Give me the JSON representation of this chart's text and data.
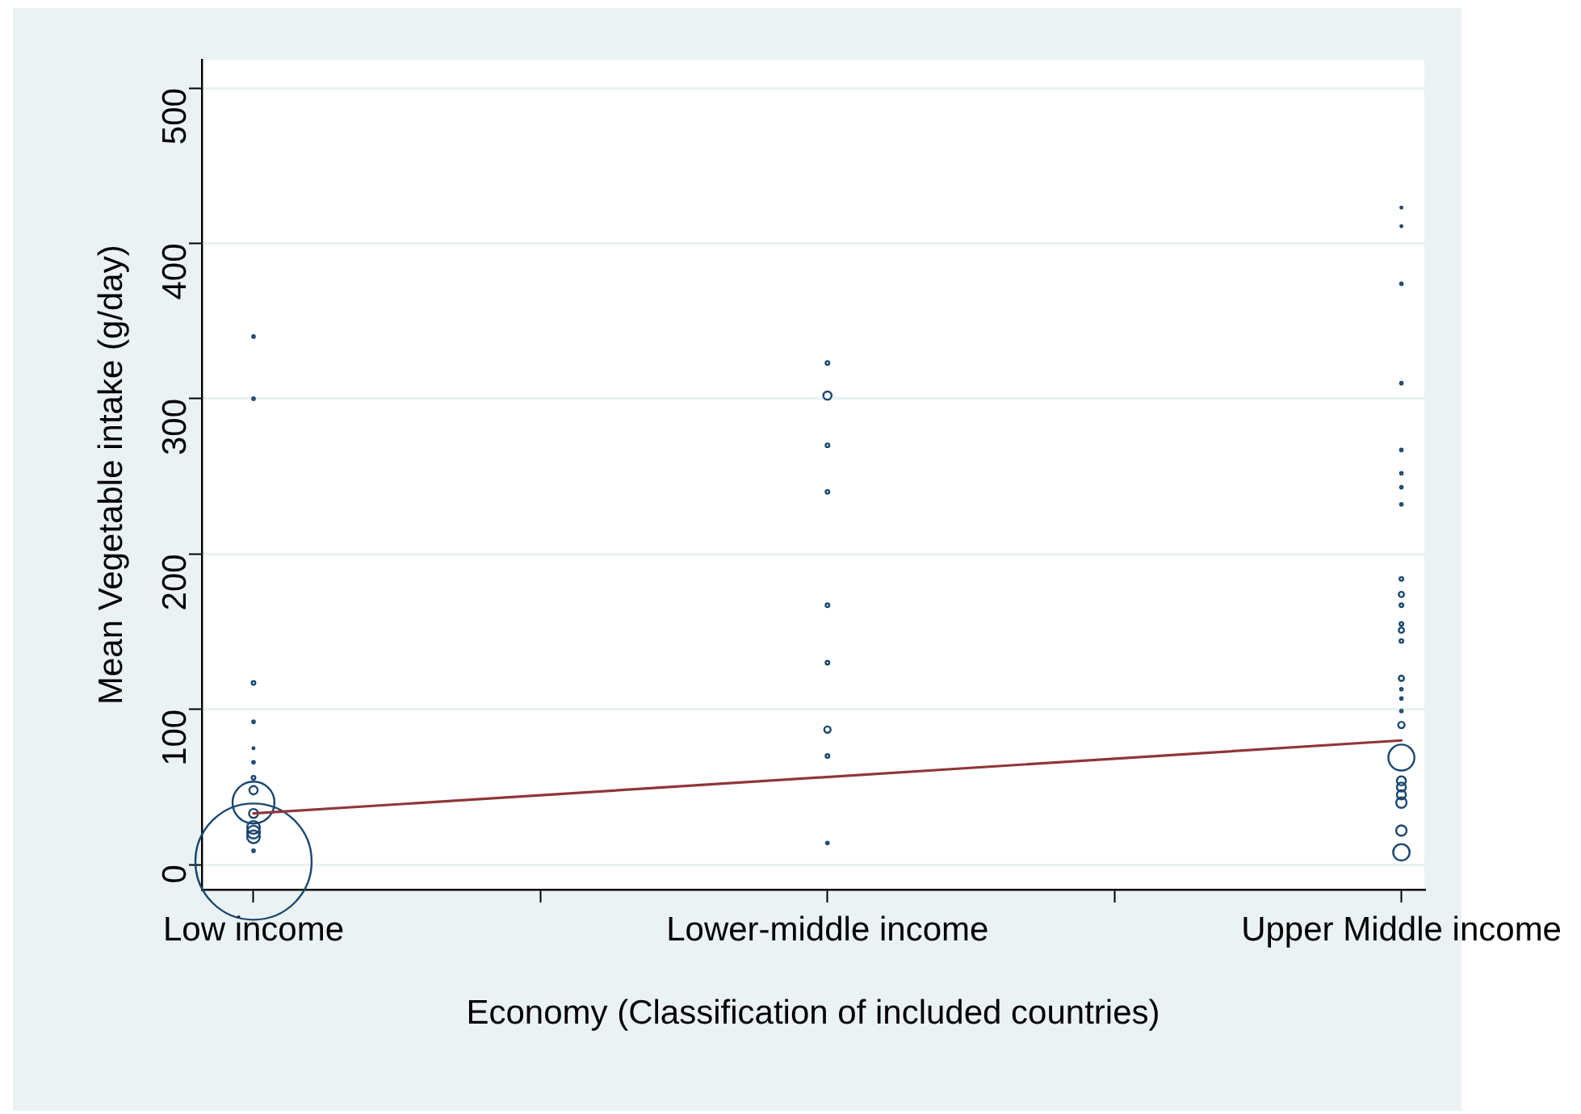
{
  "chart_data": {
    "type": "bubble",
    "xlabel": "Economy (Classification of included countries)",
    "ylabel": "Mean Vegetable intake (g/day)",
    "categories": [
      "Low income",
      "Lower-middle income",
      "Upper Middle income"
    ],
    "ylim": [
      -16,
      518
    ],
    "yticks": [
      0,
      100,
      200,
      300,
      400,
      500
    ],
    "grid": "y",
    "series": [
      {
        "color": "#1a476f",
        "marker": "circle",
        "x": [
          "Low income",
          "Low income",
          "Low income",
          "Low income",
          "Low income",
          "Low income",
          "Low income",
          "Low income",
          "Low income",
          "Low income",
          "Low income",
          "Low income",
          "Low income",
          "Low income",
          "Low income",
          "Lower-middle income",
          "Lower-middle income",
          "Lower-middle income",
          "Lower-middle income",
          "Lower-middle income",
          "Lower-middle income",
          "Lower-middle income",
          "Lower-middle income",
          "Lower-middle income",
          "Upper Middle income",
          "Upper Middle income",
          "Upper Middle income",
          "Upper Middle income",
          "Upper Middle income",
          "Upper Middle income",
          "Upper Middle income",
          "Upper Middle income",
          "Upper Middle income",
          "Upper Middle income",
          "Upper Middle income",
          "Upper Middle income",
          "Upper Middle income",
          "Upper Middle income",
          "Upper Middle income",
          "Upper Middle income",
          "Upper Middle income",
          "Upper Middle income",
          "Upper Middle income",
          "Upper Middle income",
          "Upper Middle income",
          "Upper Middle income",
          "Upper Middle income",
          "Upper Middle income",
          "Upper Middle income",
          "Upper Middle income"
        ],
        "values": [
          340,
          300,
          117,
          92,
          75,
          66,
          56,
          48,
          40,
          33,
          24,
          21,
          18,
          9,
          2,
          323,
          302,
          270,
          240,
          167,
          130,
          87,
          70,
          14,
          423,
          411,
          374,
          310,
          267,
          252,
          243,
          232,
          184,
          174,
          167,
          155,
          151,
          144,
          120,
          113,
          107,
          99,
          90,
          69,
          54,
          50,
          45,
          40,
          22,
          8
        ],
        "sizes": [
          0.0005,
          0.0005,
          0.001,
          0.0005,
          0.0003,
          0.0005,
          0.001,
          0.005,
          0.13,
          0.006,
          0.012,
          0.012,
          0.012,
          0.0005,
          1,
          0.001,
          0.005,
          0.001,
          0.001,
          0.001,
          0.001,
          0.003,
          0.001,
          0.0005,
          0.0003,
          0.0003,
          0.0005,
          0.0005,
          0.0005,
          0.0005,
          0.0005,
          0.0005,
          0.001,
          0.002,
          0.001,
          0.001,
          0.002,
          0.001,
          0.002,
          0.0005,
          0.0005,
          0.0005,
          0.003,
          0.05,
          0.006,
          0.006,
          0.006,
          0.008,
          0.008,
          0.02
        ]
      },
      {
        "type": "line",
        "color": "#90353b",
        "x": [
          "Low income",
          "Upper Middle income"
        ],
        "values": [
          33,
          80
        ]
      }
    ]
  }
}
